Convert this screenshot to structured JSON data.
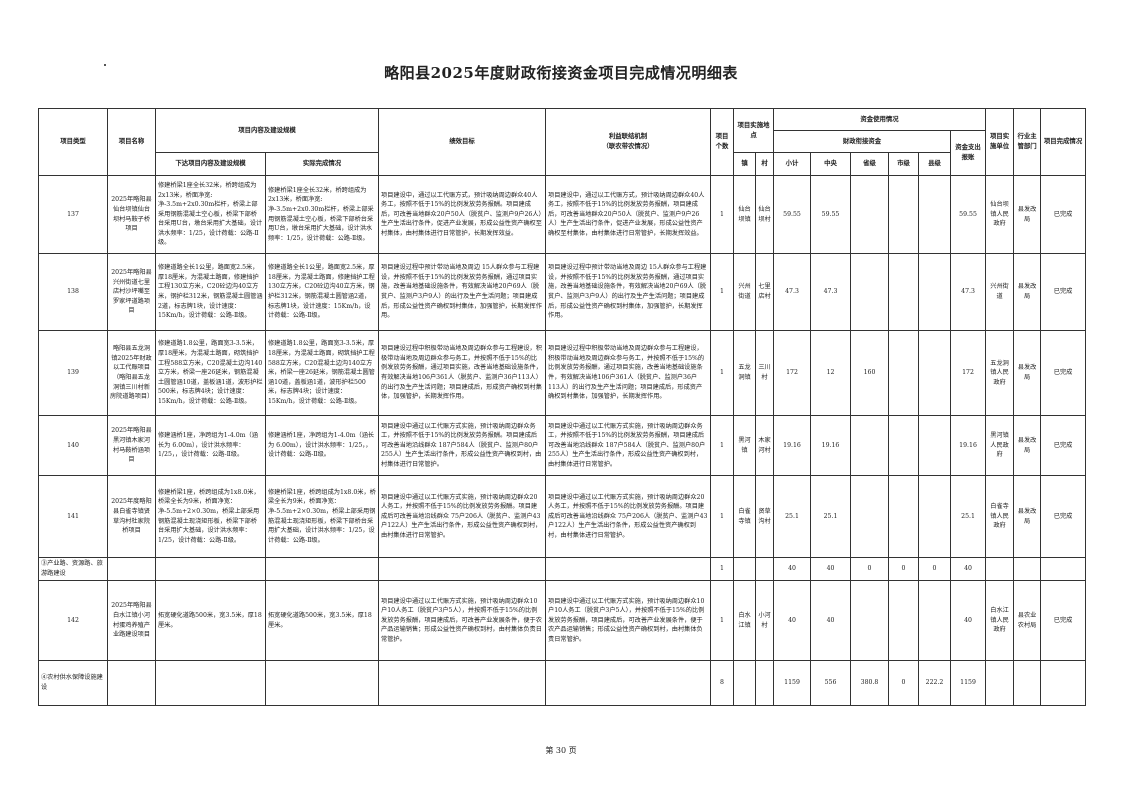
{
  "title": "略阳县2025年度财政衔接资金项目完成情况明细表",
  "page_label": "第 30 页",
  "headers": {
    "type": "项目类型",
    "name": "项目名称",
    "content_group": "项目内容及建设规模",
    "planned": "下达项目内容及建设规模",
    "actual": "实际完成情况",
    "goal": "绩效目标",
    "benefit": "利益联结机制\n（联农带农情况）",
    "count": "项目个数",
    "location_group": "项目实施地点",
    "town": "镇",
    "village": "村",
    "fund_group": "资金使用情况",
    "fiscal_group": "财政衔接资金",
    "subtotal": "小计",
    "central": "中央",
    "province": "省级",
    "city": "市级",
    "county": "县级",
    "reimbursed": "资金支出报账",
    "unit": "项目实施单位",
    "dept": "行业主管部门",
    "status": "项目完成情况"
  },
  "rows": [
    {
      "type": "137",
      "name": "2025年略阳县仙台坝镇仙台坝村马鞍子桥项目",
      "planned": "修建桥梁1座全长32米，桥跨组成为2x13米，桥面净宽:净-3.5m+2x0.30m栏杆，桥梁上部采用钢筋混凝土空心板，桥梁下部桥台采用U台，墩台采用扩大基础，设计洪水频率：1/25，设计荷载：公路-Ⅱ级。",
      "actual": "修建桥梁1座全长32米，桥跨组成为2x13米，桥面净宽:净-3.5m+2x0.30m栏杆，桥梁上部采用钢筋混凝土空心板，桥梁下部桥台采用U台，墩台采用扩大基础，设计洪水频率：1/25，设计荷载：公路-Ⅱ级。",
      "goal": "项目建设中，通过以工代赈方式，预计吸纳周边群众40人务工，按照不低于15%的比例发放劳务报酬。项目建成后，可改善当地群众20户50人（脱贫户、监测户9户26人）生产生活出行条件，促进产业发展，形成公益性资产确权至村集体，由村集体进行日常管护，长期发挥效益。",
      "benefit": "项目建设中，通过以工代赈方式，预计吸纳周边群众40人务工，按照不低于15%的比例发放劳务报酬，项目建成后，可改善当地群众20户50人（脱贫户、监测户9户26人）生产生活出行条件，促进产业发展，形成公益性资产确权至村集体，由村集体进行日常管护，长期发挥效益。",
      "count": "1",
      "town": "仙台坝镇",
      "village": "仙台坝村",
      "subtotal": "59.55",
      "central": "59.55",
      "province": "",
      "city": "",
      "county": "",
      "reimbursed": "59.55",
      "unit": "仙台坝镇人民政府",
      "dept": "县发改局",
      "status": "已完成"
    },
    {
      "type": "138",
      "name": "2025年略阳县兴州街道七里店村沙坪嘴至罗家坪道路项目",
      "planned": "修建道路全长1公里，路面宽2.5米，厚18厘米，为混凝土路面，修建挡护工程130立方米，C20砼边沟40立方米，钢护栏312米，钢筋混凝土圆管涵2道，标志牌1块，设计速度：15Km/h，设计荷载：公路-Ⅱ级。",
      "actual": "修建道路全长1公里，路面宽2.5米，厚18厘米，为混凝土路面，修建挡护工程130立方米，C20砼边沟40立方米，钢护栏312米，钢筋混凝土圆管涵2道，标志牌1块，设计速度：15Km/h，设计荷载：公路-Ⅱ级。",
      "goal": "项目建设过程中预计带动当地及周边 15人群众参与工程建设，并按照不低于15%的比例发放劳务报酬，通过项目实施，改善当地基础设施条件，有效解决当地20户69人（脱贫户、监测户3户9人）的出行及生产生活问题；项目建成后，形成公益性资产确权到村集体，加强管护，长期发挥作用。",
      "benefit": "项目建设过程中预计带动当地及周边 15人群众参与工程建设，并按照不低于15%的比例发放劳务报酬，通过项目实施，改善当地基础设施条件，有效解决当地20户69人（脱贫户、监测户3户9人）的出行及生产生活问题；项目建成后，形成公益性资产确权到村集体，加强管护，长期发挥作用。",
      "count": "1",
      "town": "兴州街道",
      "village": "七里店村",
      "subtotal": "47.3",
      "central": "47.3",
      "province": "",
      "city": "",
      "county": "",
      "reimbursed": "47.3",
      "unit": "兴州街道",
      "dept": "县发改局",
      "status": "已完成"
    },
    {
      "type": "139",
      "name": "略阳县五龙洞镇2025年财政以工代赈项目（略阳县五龙洞镇三川村新房院道路项目）",
      "planned": "修建道路1.8公里，路面宽3-3.5米，厚18厘米，为混凝土路面，砌筑挡护工程588立方米，C20混凝土边沟140立方米，桥梁一座26延米，钢筋混凝土圆管涵10道，盖板涵1道，波形护栏500米，标志牌4块；设计速度：15Km/h，设计荷载：公路-Ⅱ级。",
      "actual": "修建道路1.8公里，路面宽3-3.5米，厚18厘米，为混凝土路面，砌筑挡护工程588立方米，C20混凝土边沟140立方米，桥梁一座26延米，钢筋混凝土圆管涵10道，盖板涵1道，波形护栏500米，标志牌4块；设计速度：15Km/h，设计荷载：公路-Ⅱ级。",
      "goal": "项目建设过程中积极带动当地及周边群众参与工程建设，积极带动当地及周边群众参与务工，并按照不低于15%的比例发放劳务报酬，通过项目实施，改善当地基础设施条件，有效解决当地106户361人（脱贫户、监测户36户113人）的出行及生产生活问题；项目建成后，形成资产确权到村集体，加强管护，长期发挥作用。",
      "benefit": "项目建设过程中积极带动当地及周边群众参与工程建设，积极带动当地及周边群众参与务工，并按照不低于15%的比例发放劳务报酬，通过项目实施，改善当地基础设施条件，有效解决当地106户361人（脱贫户、监测户36户113人）的出行及生产生活问题；项目建成后，形成资产确权到村集体，加强管护，长期发挥作用。",
      "count": "1",
      "town": "五龙洞镇",
      "village": "三川村",
      "subtotal": "172",
      "central": "12",
      "province": "160",
      "city": "",
      "county": "",
      "reimbursed": "172",
      "unit": "五龙洞镇人民政府",
      "dept": "县发改局",
      "status": "已完成"
    },
    {
      "type": "140",
      "name": "2025年略阳县黑河镇木家河村马鞍桥涵项目",
      "planned": "修建涵桥1座，净跨组为1-4.0m（涵长为 6.00m），设计洪水频率：1/25，，设计荷载：公路-Ⅱ级。",
      "actual": "修建涵桥1座，净跨组为1-4.0m（涵长为 6.00m），设计洪水频率：1/25，，设计荷载：公路-Ⅱ级。",
      "goal": "项目建设中通过以工代赈方式实施，预计吸纳周边群众务工，并按照不低于15%的比例发放劳务报酬。项目建成后可改善当地沿线群众 187户584人（脱贫户、监测户80户255人）生产生活出行条件，形成公益性资产确权到村，由村集体进行日常管护。",
      "benefit": "项目建设中通过以工代赈方式实施，预计吸纳周边群众务工，并按照不低于15%的比例发放劳务报酬，项目建成后可改善当地沿线群众 187户584人（脱贫户、监测户80户255人）生产生活出行条件，形成公益性资产确权到村，由村集体进行日常管护。",
      "count": "1",
      "town": "黑河镇",
      "village": "木家河村",
      "subtotal": "19.16",
      "central": "19.16",
      "province": "",
      "city": "",
      "county": "",
      "reimbursed": "19.16",
      "unit": "黑河镇人民政府",
      "dept": "县发改局",
      "status": "已完成"
    },
    {
      "type": "141",
      "name": "2025年度略阳县白雀寺镇贤草沟村杜家院桥项目",
      "planned": "修建桥梁1座，桥跨组成为1x8.0米，桥梁全长为9米，桥面净宽：净-5.5m+2×0.30m，桥梁上部采用钢筋混凝土现浇矩形板，桥梁下部桥台采用扩大基础，设计洪水频率：1/25，设计荷载：公路-Ⅱ级。",
      "actual": "修建桥梁1座，桥跨组成为1x8.0米，桥梁全长为9米，桥面净宽：净-5.5m+2×0.30m，桥梁上部采用钢筋混凝土现浇矩形板，桥梁下部桥台采用扩大基础，设计洪水频率：1/25，设计荷载：公路-Ⅱ级。",
      "goal": "项目建设中通过以工代赈方式实施，预计吸纳周边群众20人务工，并按照不低于15%的比例发放劳务报酬。项目建成后可改善当地沿线群众 75户206人（脱贫户、监测户43户122人）生产生活出行条件，形成公益性资产确权到村，由村集体进行日常管护。",
      "benefit": "项目建设中通过以工代赈方式实施，预计吸纳周边群众20人务工，并按照不低于15%的比例发放劳务报酬。项目建成后可改善当地沿线群众 75户206人（脱贫户、监测户43户122人）生产生活出行条件，形成公益性资产确权到村，由村集体进行日常管护。",
      "count": "1",
      "town": "白雀寺镇",
      "village": "贤草沟村",
      "subtotal": "25.1",
      "central": "25.1",
      "province": "",
      "city": "",
      "county": "",
      "reimbursed": "25.1",
      "unit": "白雀寺镇人民政府",
      "dept": "县发改局",
      "status": "已完成"
    },
    {
      "section": true,
      "type": "③产业路、资源路、旅游路建设",
      "name": "",
      "planned": "",
      "actual": "",
      "goal": "",
      "benefit": "",
      "count": "1",
      "town": "",
      "village": "",
      "subtotal": "40",
      "central": "40",
      "province": "0",
      "city": "0",
      "county": "0",
      "reimbursed": "40",
      "unit": "",
      "dept": "",
      "status": ""
    },
    {
      "type": "142",
      "name": "2025年略阳县白水江镇小河村蛋鸡养殖产业路建设项目",
      "planned": "拓宽硬化道路500米，宽3.5米，厚18厘米。",
      "actual": "拓宽硬化道路500米，宽3.5米，厚18厘米。",
      "goal": "项目建设中通过以工代赈方式实施，预计吸纳周边群众10户10人务工（脱贫户3户5人），并按照不低于15%的比例发放劳务报酬，项目建成后，可改善产业发展条件，便于农产品运输销售；形成公益性资产确权到村，由村集体负责日常管护。",
      "benefit": "项目建设中通过以工代赈方式实施，预计吸纳周边群众10户10人务工（脱贫户3户5人），并按照不低于15%的比例发放劳务报酬，项目建成后，可改善产业发展条件，便于农产品运输销售；形成公益性资产确权到村，由村集体负责日常管护。",
      "count": "1",
      "town": "白水江镇",
      "village": "小河村",
      "subtotal": "40",
      "central": "40",
      "province": "",
      "city": "",
      "county": "",
      "reimbursed": "40",
      "unit": "白水江镇人民政府",
      "dept": "县农业农村局",
      "status": "已完成"
    },
    {
      "section": true,
      "type": "④农村供水保障设施建设",
      "name": "",
      "planned": "",
      "actual": "",
      "goal": "",
      "benefit": "",
      "count": "8",
      "town": "",
      "village": "",
      "subtotal": "1159",
      "central": "556",
      "province": "380.8",
      "city": "0",
      "county": "222.2",
      "reimbursed": "1159",
      "unit": "",
      "dept": "",
      "status": ""
    }
  ]
}
